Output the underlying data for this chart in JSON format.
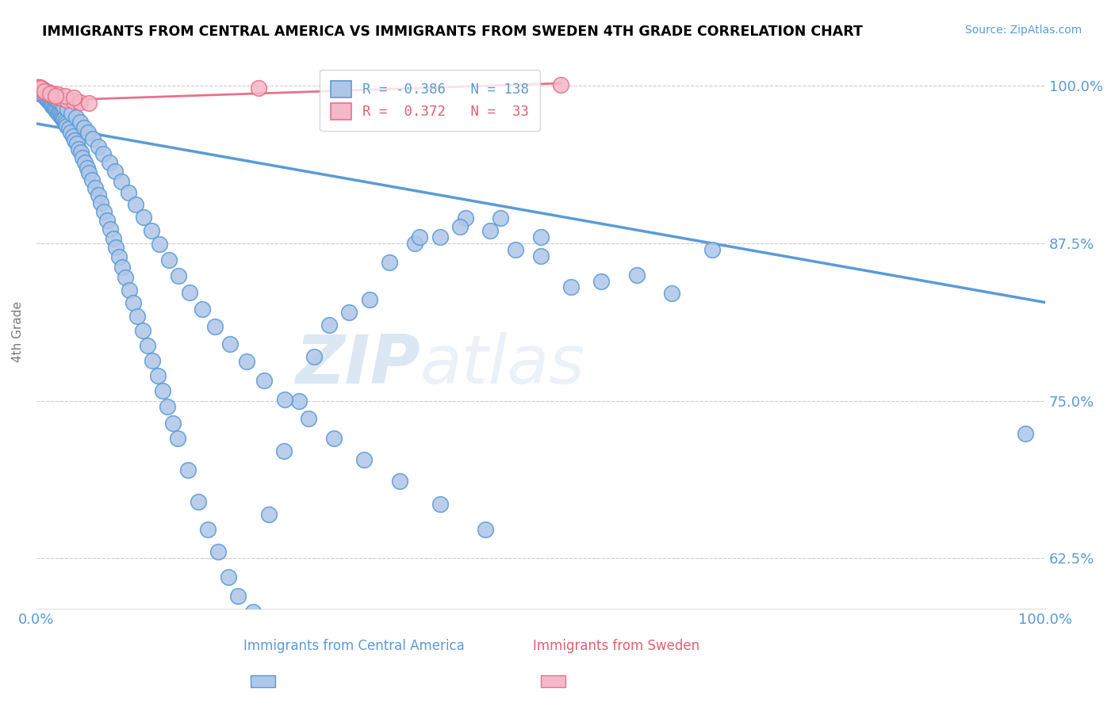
{
  "title": "IMMIGRANTS FROM CENTRAL AMERICA VS IMMIGRANTS FROM SWEDEN 4TH GRADE CORRELATION CHART",
  "source": "Source: ZipAtlas.com",
  "ylabel": "4th Grade",
  "yticks": [
    0.625,
    0.75,
    0.875,
    1.0
  ],
  "ytick_labels": [
    "62.5%",
    "75.0%",
    "87.5%",
    "100.0%"
  ],
  "xlim": [
    0.0,
    1.0
  ],
  "ylim": [
    0.585,
    1.025
  ],
  "blue_color": "#5b9bd5",
  "pink_color": "#e8728a",
  "blue_fill": "#aec6e8",
  "pink_fill": "#f4b8c8",
  "watermark_zip": "ZIP",
  "watermark_atlas": "atlas",
  "blue_trend_x": [
    0.0,
    1.0
  ],
  "blue_trend_y": [
    0.97,
    0.828
  ],
  "pink_trend_x": [
    0.0,
    0.52
  ],
  "pink_trend_y": [
    0.988,
    1.002
  ],
  "blue_scatter_x": [
    0.002,
    0.003,
    0.004,
    0.005,
    0.006,
    0.007,
    0.008,
    0.009,
    0.01,
    0.011,
    0.012,
    0.013,
    0.014,
    0.015,
    0.016,
    0.017,
    0.018,
    0.019,
    0.02,
    0.021,
    0.022,
    0.023,
    0.024,
    0.025,
    0.026,
    0.027,
    0.028,
    0.029,
    0.03,
    0.032,
    0.034,
    0.036,
    0.038,
    0.04,
    0.042,
    0.044,
    0.046,
    0.048,
    0.05,
    0.052,
    0.055,
    0.058,
    0.061,
    0.064,
    0.067,
    0.07,
    0.073,
    0.076,
    0.079,
    0.082,
    0.085,
    0.088,
    0.092,
    0.096,
    0.1,
    0.105,
    0.11,
    0.115,
    0.12,
    0.125,
    0.13,
    0.135,
    0.14,
    0.15,
    0.16,
    0.17,
    0.18,
    0.19,
    0.2,
    0.215,
    0.23,
    0.245,
    0.26,
    0.275,
    0.29,
    0.31,
    0.33,
    0.35,
    0.375,
    0.4,
    0.425,
    0.45,
    0.475,
    0.5,
    0.53,
    0.56,
    0.595,
    0.63,
    0.67,
    0.005,
    0.001,
    0.003,
    0.006,
    0.009,
    0.012,
    0.015,
    0.018,
    0.021,
    0.024,
    0.027,
    0.031,
    0.035,
    0.039,
    0.043,
    0.047,
    0.051,
    0.056,
    0.061,
    0.066,
    0.072,
    0.078,
    0.084,
    0.091,
    0.098,
    0.106,
    0.114,
    0.122,
    0.131,
    0.141,
    0.152,
    0.164,
    0.177,
    0.192,
    0.208,
    0.226,
    0.246,
    0.27,
    0.295,
    0.325,
    0.36,
    0.4,
    0.445,
    0.38,
    0.42,
    0.46,
    0.5,
    0.98
  ],
  "blue_scatter_y": [
    0.999,
    0.998,
    0.997,
    0.996,
    0.995,
    0.994,
    0.992,
    0.991,
    0.99,
    0.989,
    0.988,
    0.987,
    0.986,
    0.985,
    0.984,
    0.983,
    0.982,
    0.981,
    0.98,
    0.979,
    0.978,
    0.977,
    0.976,
    0.975,
    0.974,
    0.973,
    0.972,
    0.97,
    0.968,
    0.966,
    0.963,
    0.96,
    0.957,
    0.954,
    0.95,
    0.947,
    0.943,
    0.939,
    0.935,
    0.931,
    0.925,
    0.919,
    0.913,
    0.907,
    0.9,
    0.893,
    0.886,
    0.879,
    0.872,
    0.864,
    0.856,
    0.848,
    0.838,
    0.828,
    0.817,
    0.806,
    0.794,
    0.782,
    0.77,
    0.758,
    0.745,
    0.732,
    0.72,
    0.695,
    0.67,
    0.648,
    0.63,
    0.61,
    0.595,
    0.582,
    0.66,
    0.71,
    0.75,
    0.785,
    0.81,
    0.82,
    0.83,
    0.86,
    0.875,
    0.88,
    0.895,
    0.885,
    0.87,
    0.865,
    0.84,
    0.845,
    0.85,
    0.835,
    0.87,
    0.995,
    0.999,
    0.998,
    0.997,
    0.996,
    0.994,
    0.992,
    0.99,
    0.988,
    0.986,
    0.984,
    0.981,
    0.978,
    0.975,
    0.971,
    0.967,
    0.963,
    0.958,
    0.952,
    0.946,
    0.939,
    0.932,
    0.924,
    0.915,
    0.906,
    0.896,
    0.885,
    0.874,
    0.862,
    0.849,
    0.836,
    0.823,
    0.809,
    0.795,
    0.781,
    0.766,
    0.751,
    0.736,
    0.72,
    0.703,
    0.686,
    0.668,
    0.648,
    0.88,
    0.888,
    0.895,
    0.88,
    0.724
  ],
  "pink_scatter_x": [
    0.001,
    0.002,
    0.003,
    0.004,
    0.005,
    0.006,
    0.007,
    0.008,
    0.01,
    0.012,
    0.015,
    0.018,
    0.021,
    0.025,
    0.03,
    0.036,
    0.043,
    0.052,
    0.003,
    0.005,
    0.007,
    0.009,
    0.012,
    0.016,
    0.021,
    0.028,
    0.037,
    0.004,
    0.008,
    0.013,
    0.019,
    0.22,
    0.52
  ],
  "pink_scatter_y": [
    0.999,
    0.999,
    0.998,
    0.998,
    0.997,
    0.997,
    0.996,
    0.996,
    0.995,
    0.994,
    0.993,
    0.992,
    0.991,
    0.99,
    0.989,
    0.988,
    0.987,
    0.986,
    0.999,
    0.998,
    0.997,
    0.996,
    0.995,
    0.994,
    0.993,
    0.992,
    0.991,
    0.998,
    0.996,
    0.994,
    0.992,
    0.998,
    1.001
  ]
}
